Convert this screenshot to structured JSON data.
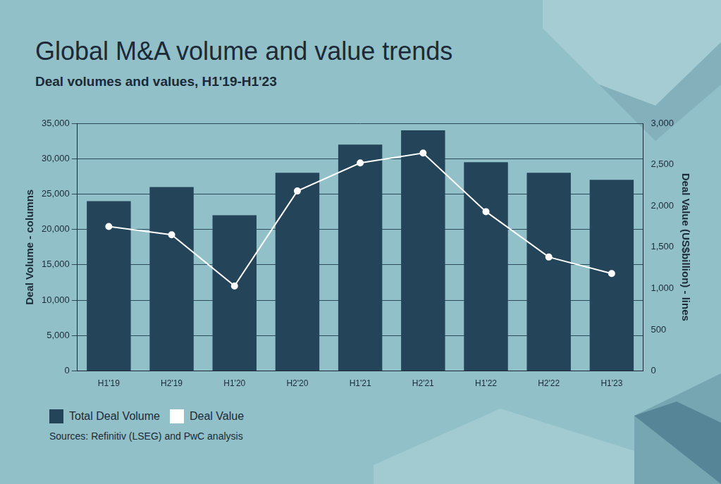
{
  "chart_data": {
    "type": "bar",
    "title": "Global M&A volume and value trends",
    "subtitle": "Deal volumes and values, H1'19-H1'23",
    "y_label": "Deal Volume - columns",
    "y2_label": "Deal Value (US$billion) - lines",
    "categories": [
      "H1'19",
      "H2'19",
      "H1'20",
      "H2'20",
      "H1'21",
      "H2'21",
      "H1'22",
      "H2'22",
      "H1'23"
    ],
    "series": [
      {
        "name": "Total Deal Volume",
        "type": "bar",
        "color": "#234459",
        "values": [
          24000,
          26000,
          22000,
          28000,
          32000,
          34000,
          29500,
          28000,
          27000
        ]
      },
      {
        "name": "Deal Value",
        "type": "line",
        "axis": "y2",
        "color": "#ffffff",
        "marker": "circle",
        "values": [
          1750,
          1650,
          1030,
          2180,
          2520,
          2640,
          1930,
          1380,
          1180
        ]
      }
    ],
    "ylim": [
      0,
      35000
    ],
    "yticks": [
      0,
      {
        "value": 5000,
        "label": "5,000"
      },
      {
        "value": 10000,
        "label": "10,000"
      },
      {
        "value": 15000,
        "label": "15,000"
      },
      {
        "value": 20000,
        "label": "20,000"
      },
      {
        "value": 25000,
        "label": "25,000"
      },
      {
        "value": 30000,
        "label": "30,000"
      },
      {
        "value": 35000,
        "label": "35,000"
      }
    ],
    "y2lim": [
      0,
      3000
    ],
    "y2ticks": [
      0,
      500,
      {
        "value": 1000,
        "label": "1,000"
      },
      {
        "value": 1500,
        "label": "1,500"
      },
      {
        "value": 2000,
        "label": "2,000"
      },
      {
        "value": 2500,
        "label": "2,500"
      },
      {
        "value": 3000,
        "label": "3,000"
      }
    ],
    "grid": true,
    "legend": "bottom left",
    "source": "Sources: Refinitiv (LSEG) and PwC analysis"
  }
}
